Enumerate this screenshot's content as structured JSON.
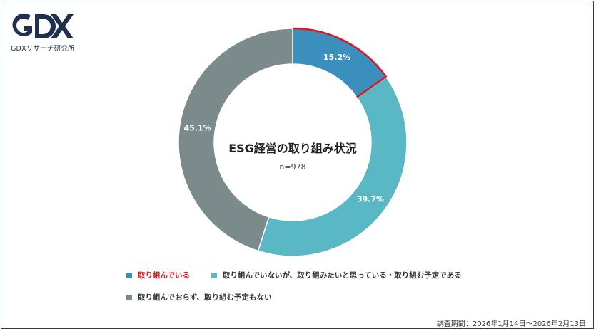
{
  "logo": {
    "mark_text": "GDX",
    "subtitle": "GDXリサーチ研究所"
  },
  "chart_data": {
    "type": "pie",
    "donut": true,
    "title": "ESG経営の取り組み状況",
    "subtitle": "n=978",
    "slices": [
      {
        "label": "取り組んでいる",
        "value": 15.2,
        "display": "15.2%",
        "color": "#3a8fbd",
        "highlight": true
      },
      {
        "label": "取り組んでいないが、取り組みたいと思っている・取り組む予定である",
        "value": 39.7,
        "display": "39.7%",
        "color": "#5ab8c4",
        "highlight": false
      },
      {
        "label": "取り組んでおらず、取り組む予定もない",
        "value": 45.1,
        "display": "45.1%",
        "color": "#7b8a8b",
        "highlight": false
      }
    ],
    "highlight_color": "#e0141e",
    "legend_position": "bottom"
  },
  "footer": {
    "period": "調査期間：2026年1月14日〜2026年2月13日"
  }
}
